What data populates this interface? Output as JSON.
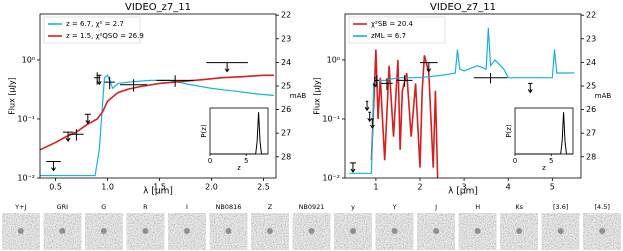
{
  "chart_data": [
    {
      "type": "line",
      "title": "VIDEO_z7_11",
      "xlabel": "λ [μm]",
      "ylabel": "Flux [μJy]",
      "ylabel2": "mAB",
      "log_y": true,
      "legend": "upper left",
      "xlim": [
        0.35,
        2.62
      ],
      "xticks": [
        {
          "value": 0.5,
          "label": "0.5"
        },
        {
          "value": 1.0,
          "label": "1.0"
        },
        {
          "value": 1.5,
          "label": "1.5"
        },
        {
          "value": 2.0,
          "label": "2.0"
        },
        {
          "value": 2.5,
          "label": "2.5"
        }
      ],
      "ylim": [
        0.01,
        6
      ],
      "yticks": [
        {
          "value": 0.01,
          "label": "10⁻²"
        },
        {
          "value": 0.1,
          "label": "10⁻¹"
        },
        {
          "value": 1,
          "label": "10⁰"
        }
      ],
      "y2lim": [
        28.9,
        21.95
      ],
      "y2ticks": [
        22,
        23,
        24,
        25,
        26,
        27,
        28
      ],
      "series": [
        {
          "name": "z = 6.7, χ² = 2.7",
          "color": "#17b4d9",
          "x": [
            0.35,
            0.88,
            0.92,
            0.97,
            1.0,
            1.05,
            1.1,
            1.2,
            1.4,
            1.6,
            1.8,
            2.0,
            2.2,
            2.4,
            2.6
          ],
          "values": [
            0.011,
            0.011,
            0.03,
            0.5,
            0.55,
            0.33,
            0.4,
            0.42,
            0.45,
            0.45,
            0.38,
            0.33,
            0.3,
            0.27,
            0.25
          ]
        },
        {
          "name": "z = 1.5, χ²QSO = 26.9",
          "color": "#d62020",
          "x": [
            0.35,
            0.5,
            0.6,
            0.7,
            0.8,
            0.9,
            0.95,
            1.0,
            1.1,
            1.2,
            1.3,
            1.5,
            1.7,
            1.9,
            2.1,
            2.3,
            2.5,
            2.6
          ],
          "values": [
            0.03,
            0.04,
            0.05,
            0.06,
            0.08,
            0.1,
            0.13,
            0.2,
            0.28,
            0.32,
            0.35,
            0.4,
            0.43,
            0.46,
            0.5,
            0.52,
            0.55,
            0.55
          ]
        }
      ],
      "photometry": {
        "x": [
          0.7,
          0.9,
          1.02,
          1.25,
          1.65
        ],
        "values": [
          0.055,
          0.5,
          0.42,
          0.38,
          0.45
        ],
        "xerr": [
          0.07,
          0.03,
          0.05,
          0.13,
          0.18
        ],
        "yerr": [
          0.012,
          0.12,
          0.1,
          0.09,
          0.1
        ]
      },
      "upper_limits": {
        "x": [
          0.48,
          0.62,
          0.81,
          0.92,
          2.15
        ],
        "values": [
          0.019,
          0.06,
          0.12,
          0.55,
          0.9
        ],
        "xerr": [
          0.07,
          0.05,
          0.03,
          0.02,
          0.2
        ]
      },
      "inset": {
        "type": "line",
        "xlabel": "z",
        "ylabel": "P(z)",
        "xlim": [
          0,
          8
        ],
        "xticks": [
          0,
          5
        ],
        "ylim": [
          0,
          1.1
        ],
        "x": [
          0,
          6.3,
          6.5,
          6.7,
          6.9,
          7.1,
          8
        ],
        "values": [
          0,
          0,
          0.3,
          1,
          0.3,
          0,
          0
        ]
      }
    },
    {
      "type": "line",
      "title": "VIDEO_z7_11",
      "xlabel": "λ [μm]",
      "ylabel": "Flux [μJy]",
      "ylabel2": "mAB",
      "log_y": true,
      "legend": "upper left",
      "xlim": [
        0.3,
        5.65
      ],
      "xticks": [
        1,
        2,
        3,
        4,
        5
      ],
      "ylim": [
        0.01,
        6
      ],
      "yticks": [
        {
          "value": 0.01,
          "label": "10⁻²"
        },
        {
          "value": 0.1,
          "label": "10⁻¹"
        },
        {
          "value": 1,
          "label": "10⁰"
        }
      ],
      "y2lim": [
        28.9,
        21.95
      ],
      "y2ticks": [
        22,
        23,
        24,
        25,
        26,
        27,
        28
      ],
      "series": [
        {
          "name": "χ²SB = 20.4",
          "color": "#d62020",
          "x": [
            0.9,
            1.0,
            1.05,
            1.1,
            1.2,
            1.3,
            1.4,
            1.5,
            1.55,
            1.6,
            1.7,
            1.8,
            1.9,
            2.0,
            2.05,
            2.1,
            2.2,
            2.3,
            2.35,
            2.4
          ],
          "values": [
            0.02,
            1.5,
            0.1,
            0.5,
            0.02,
            0.8,
            0.05,
            1.0,
            0.03,
            0.3,
            0.6,
            0.05,
            0.4,
            0.015,
            0.3,
            1.2,
            0.6,
            0.015,
            0.3,
            0.01
          ]
        },
        {
          "name": "zML = 6.7",
          "color": "#17b4d9",
          "x": [
            0.4,
            0.9,
            0.95,
            1.0,
            1.2,
            1.5,
            2.0,
            2.5,
            2.8,
            2.85,
            2.9,
            3.0,
            3.3,
            3.5,
            3.55,
            3.6,
            3.7,
            3.9,
            4.0,
            4.5,
            5.0,
            5.05,
            5.1,
            5.3,
            5.5
          ],
          "values": [
            0.012,
            0.012,
            0.4,
            0.45,
            0.45,
            0.5,
            0.5,
            0.55,
            0.6,
            1.5,
            0.7,
            0.65,
            0.8,
            0.7,
            3.5,
            0.8,
            1.0,
            0.7,
            0.5,
            0.5,
            0.5,
            1.5,
            0.6,
            0.6,
            0.6
          ]
        }
      ],
      "photometry": {
        "x": [
          1.02,
          1.25,
          1.65,
          3.6
        ],
        "values": [
          0.45,
          0.4,
          0.45,
          0.5
        ],
        "xerr": [
          0.05,
          0.13,
          0.18,
          0.38
        ],
        "yerr": [
          0.1,
          0.09,
          0.1,
          0.1
        ]
      },
      "upper_limits": {
        "x": [
          0.48,
          0.8,
          0.86,
          0.92,
          0.98,
          2.2,
          4.5
        ],
        "values": [
          0.018,
          0.2,
          0.13,
          0.1,
          0.5,
          0.9,
          0.4
        ],
        "xerr": [
          0.07,
          0.03,
          0.03,
          0.03,
          0.02,
          0.2,
          0.05
        ]
      },
      "inset": {
        "type": "line",
        "xlabel": "z",
        "ylabel": "P(z)",
        "xlim": [
          0,
          8
        ],
        "xticks": [
          0,
          5
        ],
        "ylim": [
          0,
          1.1
        ],
        "x": [
          0,
          6.3,
          6.5,
          6.7,
          6.9,
          7.1,
          8
        ],
        "values": [
          0,
          0,
          0.3,
          1,
          0.3,
          0,
          0
        ]
      }
    }
  ],
  "stamps": {
    "labels": [
      "Y+J",
      "GRI",
      "G",
      "R",
      "I",
      "NB0816",
      "Z",
      "NB0921",
      "y",
      "Y",
      "J",
      "H",
      "Ks",
      "[3.6]",
      "[4.5]"
    ]
  }
}
